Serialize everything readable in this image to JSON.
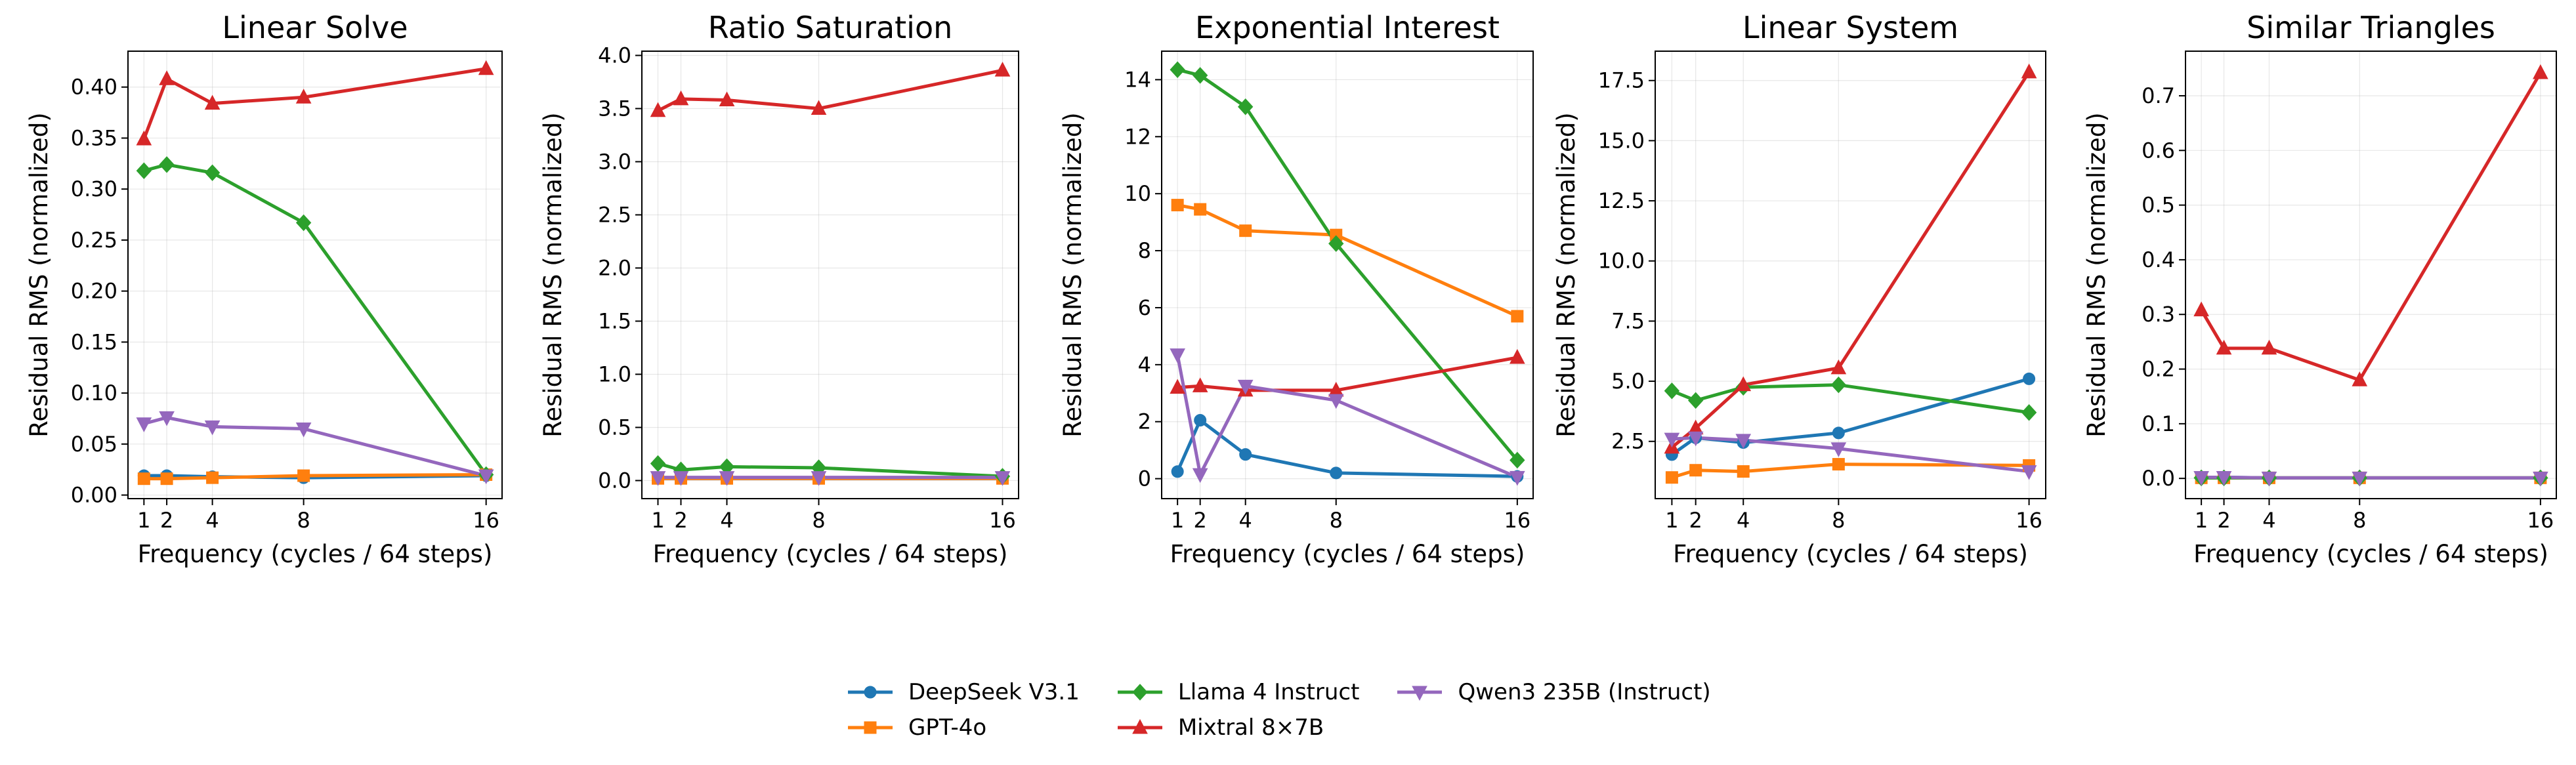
{
  "chart_data": [
    {
      "type": "line",
      "title": "Linear Solve",
      "xlabel": "Frequency (cycles / 64 steps)",
      "ylabel": "Residual RMS (normalized)",
      "x": [
        1,
        2,
        4,
        8,
        16
      ],
      "xlim": [
        0.3,
        16.7
      ],
      "ylim": [
        -0.0035,
        0.4352
      ],
      "yticks": [
        0.0,
        0.05,
        0.1,
        0.15,
        0.2,
        0.25,
        0.3,
        0.35,
        0.4
      ],
      "ytick_labels": [
        "0.00",
        "0.05",
        "0.10",
        "0.15",
        "0.20",
        "0.25",
        "0.30",
        "0.35",
        "0.40"
      ],
      "grid": true,
      "series": [
        {
          "name": "DeepSeek V3.1",
          "values": [
            0.019,
            0.019,
            0.018,
            0.017,
            0.019
          ]
        },
        {
          "name": "GPT-4o",
          "values": [
            0.016,
            0.016,
            0.017,
            0.019,
            0.02
          ]
        },
        {
          "name": "Llama 4 Instruct",
          "values": [
            0.318,
            0.324,
            0.316,
            0.267,
            0.02
          ]
        },
        {
          "name": "Mixtral 8×7B",
          "values": [
            0.349,
            0.408,
            0.384,
            0.39,
            0.418
          ]
        },
        {
          "name": "Qwen3 235B (Instruct)",
          "values": [
            0.07,
            0.076,
            0.067,
            0.065,
            0.019
          ]
        }
      ]
    },
    {
      "type": "line",
      "title": "Ratio Saturation",
      "xlabel": "Frequency (cycles / 64 steps)",
      "ylabel": "Residual RMS (normalized)",
      "x": [
        1,
        2,
        4,
        8,
        16
      ],
      "xlim": [
        0.3,
        16.7
      ],
      "ylim": [
        -0.17,
        4.04
      ],
      "yticks": [
        0.0,
        0.5,
        1.0,
        1.5,
        2.0,
        2.5,
        3.0,
        3.5,
        4.0
      ],
      "ytick_labels": [
        "0.0",
        "0.5",
        "1.0",
        "1.5",
        "2.0",
        "2.5",
        "3.0",
        "3.5",
        "4.0"
      ],
      "grid": true,
      "series": [
        {
          "name": "DeepSeek V3.1",
          "values": [
            0.02,
            0.02,
            0.02,
            0.02,
            0.02
          ]
        },
        {
          "name": "GPT-4o",
          "values": [
            0.02,
            0.02,
            0.02,
            0.02,
            0.02
          ]
        },
        {
          "name": "Llama 4 Instruct",
          "values": [
            0.16,
            0.1,
            0.13,
            0.12,
            0.04
          ]
        },
        {
          "name": "Mixtral 8×7B",
          "values": [
            3.48,
            3.59,
            3.58,
            3.5,
            3.86
          ]
        },
        {
          "name": "Qwen3 235B (Instruct)",
          "values": [
            0.03,
            0.03,
            0.03,
            0.03,
            0.03
          ]
        }
      ]
    },
    {
      "type": "line",
      "title": "Exponential Interest",
      "xlabel": "Frequency (cycles / 64 steps)",
      "ylabel": "Residual RMS (normalized)",
      "x": [
        1,
        2,
        4,
        8,
        16
      ],
      "xlim": [
        0.3,
        16.7
      ],
      "ylim": [
        -0.7,
        15.0
      ],
      "yticks": [
        0,
        2,
        4,
        6,
        8,
        10,
        12,
        14
      ],
      "ytick_labels": [
        "0",
        "2",
        "4",
        "6",
        "8",
        "10",
        "12",
        "14"
      ],
      "grid": true,
      "series": [
        {
          "name": "DeepSeek V3.1",
          "values": [
            0.25,
            2.05,
            0.85,
            0.2,
            0.08
          ]
        },
        {
          "name": "GPT-4o",
          "values": [
            9.6,
            9.45,
            8.7,
            8.55,
            5.7
          ]
        },
        {
          "name": "Llama 4 Instruct",
          "values": [
            14.35,
            14.15,
            13.05,
            8.25,
            0.65
          ]
        },
        {
          "name": "Mixtral 8×7B",
          "values": [
            3.2,
            3.25,
            3.1,
            3.1,
            4.25
          ]
        },
        {
          "name": "Qwen3 235B (Instruct)",
          "values": [
            4.35,
            0.15,
            3.25,
            2.75,
            0.05
          ]
        }
      ]
    },
    {
      "type": "line",
      "title": "Linear System",
      "xlabel": "Frequency (cycles / 64 steps)",
      "ylabel": "Residual RMS (normalized)",
      "x": [
        1,
        2,
        4,
        8,
        16
      ],
      "xlim": [
        0.3,
        16.7
      ],
      "ylim": [
        0.12,
        18.72
      ],
      "yticks": [
        2.5,
        5.0,
        7.5,
        10.0,
        12.5,
        15.0,
        17.5
      ],
      "ytick_labels": [
        "2.5",
        "5.0",
        "7.5",
        "10.0",
        "12.5",
        "15.0",
        "17.5"
      ],
      "grid": true,
      "series": [
        {
          "name": "DeepSeek V3.1",
          "values": [
            1.95,
            2.65,
            2.45,
            2.85,
            5.1
          ]
        },
        {
          "name": "GPT-4o",
          "values": [
            1.0,
            1.3,
            1.25,
            1.55,
            1.5
          ]
        },
        {
          "name": "Llama 4 Instruct",
          "values": [
            4.6,
            4.2,
            4.75,
            4.85,
            3.7
          ]
        },
        {
          "name": "Mixtral 8×7B",
          "values": [
            2.25,
            3.05,
            4.85,
            5.55,
            17.85
          ]
        },
        {
          "name": "Qwen3 235B (Instruct)",
          "values": [
            2.6,
            2.65,
            2.55,
            2.2,
            1.25
          ]
        }
      ]
    },
    {
      "type": "line",
      "title": "Similar Triangles",
      "xlabel": "Frequency (cycles / 64 steps)",
      "ylabel": "Residual RMS (normalized)",
      "x": [
        1,
        2,
        4,
        8,
        16
      ],
      "xlim": [
        0.3,
        16.7
      ],
      "ylim": [
        -0.037,
        0.7816
      ],
      "yticks": [
        0.0,
        0.1,
        0.2,
        0.3,
        0.4,
        0.5,
        0.6,
        0.7
      ],
      "ytick_labels": [
        "0.0",
        "0.1",
        "0.2",
        "0.3",
        "0.4",
        "0.5",
        "0.6",
        "0.7"
      ],
      "grid": true,
      "series": [
        {
          "name": "DeepSeek V3.1",
          "values": [
            0.002,
            0.002,
            0.001,
            0.001,
            0.001
          ]
        },
        {
          "name": "GPT-4o",
          "values": [
            0.001,
            0.001,
            0.001,
            0.001,
            0.001
          ]
        },
        {
          "name": "Llama 4 Instruct",
          "values": [
            0.001,
            0.001,
            0.001,
            0.001,
            0.001
          ]
        },
        {
          "name": "Mixtral 8×7B",
          "values": [
            0.308,
            0.238,
            0.238,
            0.18,
            0.742
          ]
        },
        {
          "name": "Qwen3 235B (Instruct)",
          "values": [
            0.002,
            0.002,
            0.001,
            0.001,
            0.001
          ]
        }
      ]
    }
  ],
  "xticks": [
    1,
    2,
    4,
    8,
    16
  ],
  "xtick_labels": [
    "1",
    "2",
    "4",
    "8",
    "16"
  ],
  "legend": {
    "placement": "bottom-center",
    "items": [
      {
        "label": "DeepSeek V3.1",
        "color": "#1f77b4",
        "marker": "circle"
      },
      {
        "label": "GPT-4o",
        "color": "#ff7f0e",
        "marker": "square"
      },
      {
        "label": "Llama 4 Instruct",
        "color": "#2ca02c",
        "marker": "diamond"
      },
      {
        "label": "Mixtral 8×7B",
        "color": "#d62728",
        "marker": "triangle-up"
      },
      {
        "label": "Qwen3 235B (Instruct)",
        "color": "#9467bd",
        "marker": "triangle-down"
      }
    ]
  }
}
